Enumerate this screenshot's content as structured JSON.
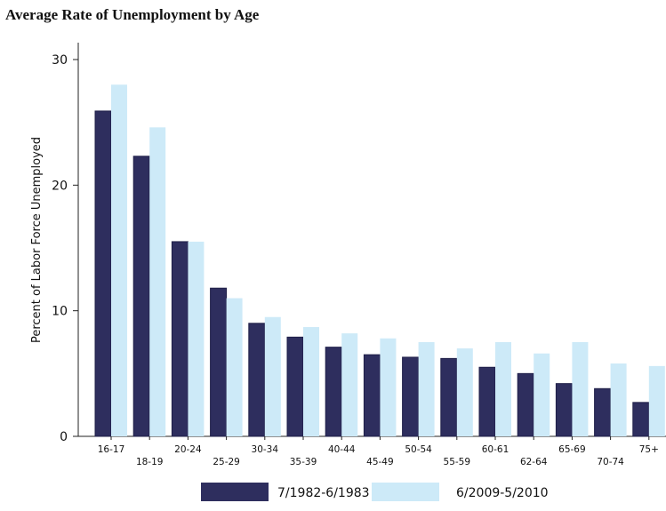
{
  "chart_data": {
    "type": "bar",
    "title": "Average Rate of Unemployment by Age",
    "ylabel": "Percent of Labor Force Unemployed",
    "xlabel": "",
    "ylim": [
      0,
      30
    ],
    "yticks": [
      0,
      10,
      20,
      30
    ],
    "grid": false,
    "legend_position": "bottom",
    "categories": [
      "16-17",
      "18-19",
      "20-24",
      "25-29",
      "30-34",
      "35-39",
      "40-44",
      "45-49",
      "50-54",
      "55-59",
      "60-61",
      "62-64",
      "65-69",
      "70-74",
      "75+"
    ],
    "series": [
      {
        "name": "7/1982-6/1983",
        "color": "#2e2e5e",
        "values": [
          25.9,
          22.3,
          15.5,
          11.8,
          9.0,
          7.9,
          7.1,
          6.5,
          6.3,
          6.2,
          5.5,
          5.0,
          4.2,
          3.8,
          2.7
        ]
      },
      {
        "name": "6/2009-5/2010",
        "color": "#cdeaf8",
        "values": [
          28.0,
          24.6,
          15.5,
          11.0,
          9.5,
          8.7,
          8.2,
          7.8,
          7.5,
          7.0,
          7.5,
          6.6,
          7.5,
          5.8,
          5.6
        ]
      }
    ]
  }
}
